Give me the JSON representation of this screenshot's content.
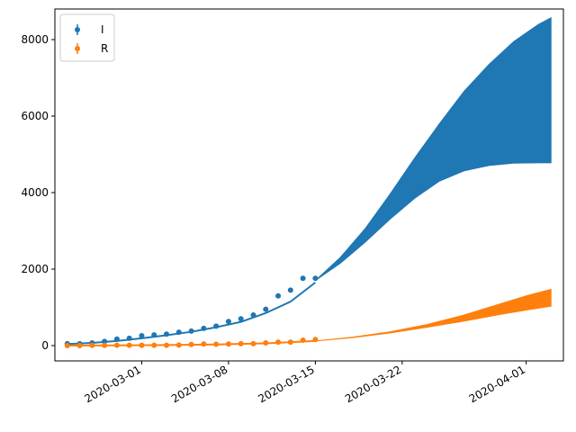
{
  "chart_data": {
    "type": "scatter",
    "title": "",
    "xlabel": "",
    "ylabel": "",
    "x_range": [
      "2020-02-23",
      "2020-04-04"
    ],
    "ylim": [
      -400,
      8800
    ],
    "yticks": [
      0,
      2000,
      4000,
      6000,
      8000
    ],
    "ytick_labels": [
      "0",
      "2000",
      "4000",
      "6000",
      "8000"
    ],
    "xticks": [
      "2020-03-01",
      "2020-03-08",
      "2020-03-15",
      "2020-03-22",
      "2020-04-01"
    ],
    "xtick_labels": [
      "2020-03-01",
      "2020-03-08",
      "2020-03-15",
      "2020-03-22",
      "2020-04-01"
    ],
    "legend_position": "top-left",
    "grid": false,
    "series": [
      {
        "name": "I",
        "color": "#1f77b4",
        "observed_dates": [
          "2020-02-24",
          "2020-02-25",
          "2020-02-26",
          "2020-02-27",
          "2020-02-28",
          "2020-02-29",
          "2020-03-01",
          "2020-03-02",
          "2020-03-03",
          "2020-03-04",
          "2020-03-05",
          "2020-03-06",
          "2020-03-07",
          "2020-03-08",
          "2020-03-09",
          "2020-03-10",
          "2020-03-11",
          "2020-03-12",
          "2020-03-13",
          "2020-03-14",
          "2020-03-15"
        ],
        "observed_values": [
          50,
          50,
          70,
          110,
          170,
          190,
          260,
          280,
          300,
          350,
          380,
          450,
          510,
          630,
          700,
          800,
          950,
          1300,
          1450,
          1760,
          1760
        ],
        "fit_dates": [
          "2020-02-24",
          "2020-02-26",
          "2020-02-28",
          "2020-03-01",
          "2020-03-03",
          "2020-03-05",
          "2020-03-07",
          "2020-03-09",
          "2020-03-11",
          "2020-03-13",
          "2020-03-15"
        ],
        "fit_values": [
          40,
          70,
          120,
          190,
          270,
          360,
          480,
          620,
          850,
          1150,
          1650
        ],
        "band_dates": [
          "2020-03-15",
          "2020-03-17",
          "2020-03-19",
          "2020-03-21",
          "2020-03-23",
          "2020-03-25",
          "2020-03-27",
          "2020-03-29",
          "2020-03-31",
          "2020-04-02",
          "2020-04-03"
        ],
        "band_upper": [
          1700,
          2300,
          3050,
          3950,
          4900,
          5800,
          6650,
          7350,
          7950,
          8400,
          8570
        ],
        "band_lower": [
          1700,
          2150,
          2700,
          3300,
          3850,
          4300,
          4570,
          4710,
          4770,
          4780,
          4780
        ]
      },
      {
        "name": "R",
        "color": "#ff7f0e",
        "observed_dates": [
          "2020-02-24",
          "2020-02-25",
          "2020-02-26",
          "2020-02-27",
          "2020-02-28",
          "2020-02-29",
          "2020-03-01",
          "2020-03-02",
          "2020-03-03",
          "2020-03-04",
          "2020-03-05",
          "2020-03-06",
          "2020-03-07",
          "2020-03-08",
          "2020-03-09",
          "2020-03-10",
          "2020-03-11",
          "2020-03-12",
          "2020-03-13",
          "2020-03-14",
          "2020-03-15"
        ],
        "observed_values": [
          0,
          0,
          5,
          5,
          10,
          10,
          10,
          10,
          10,
          15,
          30,
          40,
          35,
          40,
          50,
          50,
          70,
          90,
          90,
          140,
          160
        ],
        "fit_dates": [
          "2020-02-24",
          "2020-02-28",
          "2020-03-03",
          "2020-03-07",
          "2020-03-11",
          "2020-03-15"
        ],
        "fit_values": [
          0,
          5,
          15,
          30,
          60,
          120
        ],
        "band_dates": [
          "2020-03-15",
          "2020-03-18",
          "2020-03-21",
          "2020-03-24",
          "2020-03-27",
          "2020-03-30",
          "2020-04-01",
          "2020-04-03"
        ],
        "band_upper": [
          120,
          220,
          360,
          550,
          800,
          1100,
          1300,
          1470
        ],
        "band_lower": [
          120,
          210,
          330,
          480,
          640,
          820,
          930,
          1030
        ]
      }
    ]
  }
}
